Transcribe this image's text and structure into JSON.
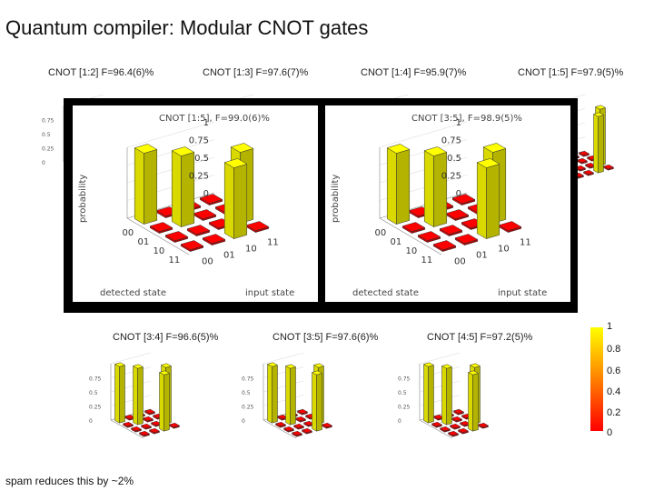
{
  "title": "Quantum compiler: Modular CNOT gates",
  "note": "spam reduces this by ~2%",
  "plots": {
    "cnot12": "CNOT [1:2] F=96.4(6)%",
    "cnot13": "CNOT [1:3] F=97.6(7)%",
    "cnot14": "CNOT [1:4] F=95.9(7)%",
    "cnot15": "CNOT [1:5] F=97.9(5)%",
    "cnot34": "CNOT [3:4] F=96.6(5)%",
    "cnot35": "CNOT [3:5] F=97.6(6)%",
    "cnot45": "CNOT [4:5] F=97.2(5)%"
  },
  "insets": [
    {
      "title": "CNOT [1:5], F=99.0(6)%",
      "ylabel": "probability",
      "xlabel": "detected state",
      "zlabel": "input state",
      "yticks": [
        "0",
        "0.25",
        "0.5",
        "0.75",
        "1"
      ],
      "states": [
        "00",
        "01",
        "10",
        "11"
      ]
    },
    {
      "title": "CNOT [3:5], F=98.9(5)%",
      "ylabel": "probability",
      "xlabel": "detected state",
      "zlabel": "input state",
      "yticks": [
        "0",
        "0.25",
        "0.5",
        "0.75",
        "1"
      ],
      "states": [
        "00",
        "01",
        "10",
        "11"
      ]
    }
  ],
  "colorbar": {
    "ticks": [
      "1",
      "0.8",
      "0.6",
      "0.4",
      "0.2",
      "0"
    ],
    "colors": [
      "#ffff00",
      "#ff0000"
    ]
  },
  "chart_data": {
    "type": "bar",
    "categories": [
      "00",
      "01",
      "10",
      "11"
    ],
    "x": [
      "00",
      "01",
      "10",
      "11"
    ],
    "series": [
      {
        "values": [
          1,
          0,
          0,
          0
        ]
      },
      {
        "values": [
          0,
          1,
          0,
          0
        ]
      },
      {
        "values": [
          0,
          0,
          0,
          1
        ]
      },
      {
        "values": [
          0,
          0,
          1,
          0
        ]
      }
    ],
    "ylim": [
      0,
      1
    ],
    "ylabel": "probability",
    "xlabel": "detected state"
  }
}
